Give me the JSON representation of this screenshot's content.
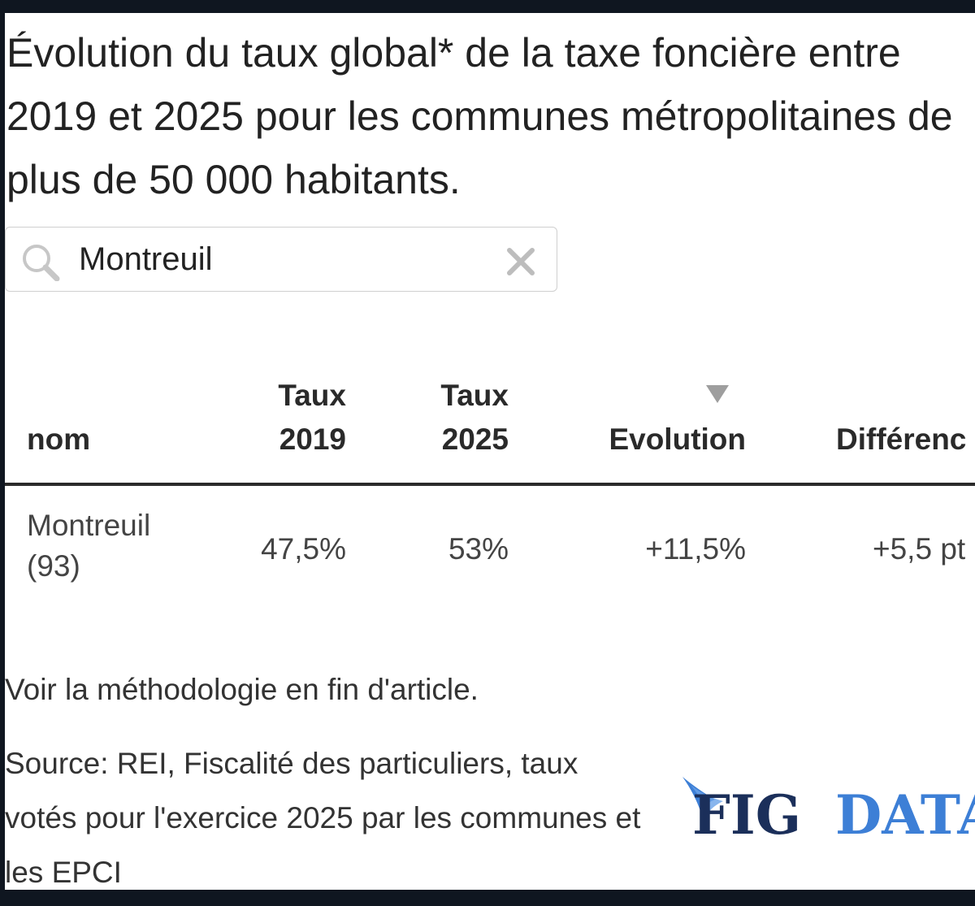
{
  "title": "Évolution du taux global* de la taxe foncière entre 2019 et 2025 pour les communes métropolitaines de plus de 50 000 habitants.",
  "search": {
    "value": "Montreuil",
    "icon": "search-icon",
    "clear_icon": "close-icon"
  },
  "table": {
    "sorted_column": "Evolution",
    "headers": {
      "nom": "nom",
      "taux_2019": [
        "Taux",
        "2019"
      ],
      "taux_2025": [
        "Taux",
        "2025"
      ],
      "evolution": "Evolution",
      "difference": "Différenc"
    },
    "rows": [
      {
        "nom": [
          "Montreuil",
          "(93)"
        ],
        "taux_2019": "47,5%",
        "taux_2025": "53%",
        "evolution": "+11,5%",
        "difference": "+5,5 pt"
      }
    ]
  },
  "footer": {
    "methodology": "Voir la méthodologie en fin d'article.",
    "source": "Source: REI, Fiscalité des particuliers, taux votés pour l'exercice 2025 par les communes et les EPCI"
  },
  "logo": {
    "part1": "FIG",
    "part2": "DATA",
    "color_dark": "#1b2f5a",
    "color_light": "#3d7fd6"
  }
}
